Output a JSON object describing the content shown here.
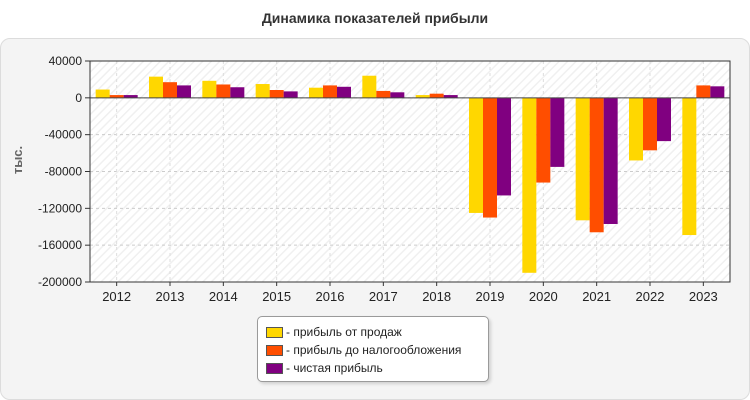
{
  "chart_data": {
    "type": "bar",
    "title": "Динамика показателей прибыли",
    "xlabel": "",
    "ylabel": "тыс.",
    "ylim": [
      -200000,
      40000
    ],
    "yticks": [
      40000,
      0,
      -40000,
      -80000,
      -120000,
      -160000,
      -200000
    ],
    "grid": true,
    "legend_position": "bottom-center",
    "categories": [
      "2012",
      "2013",
      "2014",
      "2015",
      "2016",
      "2017",
      "2018",
      "2019",
      "2020",
      "2021",
      "2022",
      "2023"
    ],
    "series": [
      {
        "name": "- прибыль от продаж",
        "color": "#FFD700",
        "values": [
          9000,
          23000,
          18500,
          15000,
          11000,
          24000,
          3000,
          -125000,
          -190000,
          -133000,
          -68000,
          -149000
        ]
      },
      {
        "name": "- прибыль до налогообложения",
        "color": "#FF4E00",
        "values": [
          3000,
          17000,
          14500,
          8500,
          13500,
          7500,
          4500,
          -130000,
          -92000,
          -146000,
          -57000,
          13500
        ]
      },
      {
        "name": "- чистая прибыль",
        "color": "#800080",
        "values": [
          3000,
          13500,
          11500,
          7000,
          12000,
          6000,
          3000,
          -106000,
          -75000,
          -137000,
          -47000,
          12500
        ]
      }
    ]
  }
}
